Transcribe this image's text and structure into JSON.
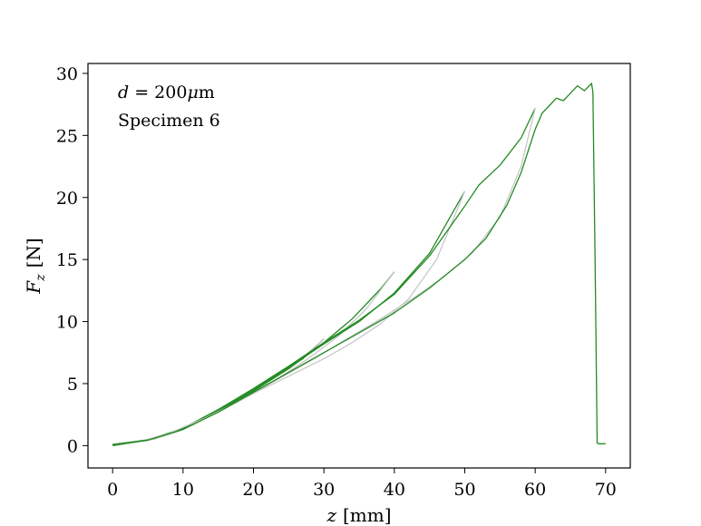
{
  "chart_data": {
    "type": "line",
    "xlabel": {
      "symbol": "z",
      "unit": "[mm]"
    },
    "ylabel": {
      "symbol": "F",
      "subscript": "z",
      "unit": "[N]"
    },
    "xlim": [
      -3.5,
      73.5
    ],
    "ylim": [
      -1.8,
      30.8
    ],
    "xticks": [
      "0",
      "10",
      "20",
      "30",
      "40",
      "50",
      "60",
      "70"
    ],
    "yticks": [
      "0",
      "5",
      "10",
      "15",
      "20",
      "25",
      "30"
    ],
    "annotations": [
      {
        "symbol": "d",
        "text": " = 200",
        "greek": "μ",
        "unit": "m"
      },
      {
        "text": "Specimen 6"
      }
    ],
    "colors": {
      "loading": "#228b22",
      "unloading": "#c8c8c8"
    },
    "series": [
      {
        "values": [
          [
            0,
            0.1
          ],
          [
            3,
            0.25
          ],
          [
            6,
            0.55
          ],
          [
            9,
            1.1
          ],
          [
            12,
            1.9
          ],
          [
            15,
            2.9
          ],
          [
            18,
            3.9
          ],
          [
            21,
            4.9
          ],
          [
            24,
            5.9
          ],
          [
            27,
            7.0
          ],
          [
            30,
            8.6
          ]
        ]
      },
      {
        "values": [
          [
            30,
            8.6
          ],
          [
            26,
            6.6
          ],
          [
            22,
            5.2
          ],
          [
            18,
            3.9
          ],
          [
            14,
            2.6
          ],
          [
            10,
            1.4
          ],
          [
            6,
            0.6
          ],
          [
            3,
            0.3
          ],
          [
            0,
            0.1
          ]
        ]
      },
      {
        "values": [
          [
            0,
            0.1
          ],
          [
            5,
            0.45
          ],
          [
            10,
            1.4
          ],
          [
            15,
            2.9
          ],
          [
            20,
            4.6
          ],
          [
            25,
            6.4
          ],
          [
            30,
            8.3
          ],
          [
            34,
            10.2
          ],
          [
            38,
            12.6
          ],
          [
            40,
            14.0
          ]
        ]
      },
      {
        "values": [
          [
            40,
            14.0
          ],
          [
            36,
            11.0
          ],
          [
            32,
            8.8
          ],
          [
            28,
            7.1
          ],
          [
            24,
            5.6
          ],
          [
            20,
            4.2
          ],
          [
            15,
            2.7
          ],
          [
            10,
            1.3
          ],
          [
            5,
            0.4
          ],
          [
            0,
            0.05
          ]
        ]
      },
      {
        "values": [
          [
            0,
            0.05
          ],
          [
            5,
            0.45
          ],
          [
            10,
            1.4
          ],
          [
            15,
            2.9
          ],
          [
            20,
            4.5
          ],
          [
            25,
            6.3
          ],
          [
            30,
            8.2
          ],
          [
            35,
            10.0
          ],
          [
            40,
            12.3
          ],
          [
            45,
            15.5
          ],
          [
            50,
            20.5
          ]
        ]
      },
      {
        "values": [
          [
            50,
            20.5
          ],
          [
            46,
            15.0
          ],
          [
            42,
            11.8
          ],
          [
            38,
            9.8
          ],
          [
            34,
            8.3
          ],
          [
            30,
            7.0
          ],
          [
            25,
            5.6
          ],
          [
            20,
            4.2
          ],
          [
            15,
            2.7
          ],
          [
            10,
            1.3
          ],
          [
            5,
            0.4
          ],
          [
            0,
            0.0
          ]
        ]
      },
      {
        "values": [
          [
            0,
            0.0
          ],
          [
            5,
            0.45
          ],
          [
            10,
            1.4
          ],
          [
            15,
            2.8
          ],
          [
            20,
            4.4
          ],
          [
            25,
            6.2
          ],
          [
            30,
            8.3
          ],
          [
            35,
            10.1
          ],
          [
            40,
            12.2
          ],
          [
            45,
            15.3
          ],
          [
            50,
            19.3
          ],
          [
            52,
            21.0
          ],
          [
            55,
            22.6
          ],
          [
            58,
            24.8
          ],
          [
            60,
            27.2
          ]
        ]
      },
      {
        "values": [
          [
            60,
            27.2
          ],
          [
            58,
            22.5
          ],
          [
            55,
            18.4
          ],
          [
            51,
            15.5
          ],
          [
            47,
            13.6
          ],
          [
            43,
            12.0
          ],
          [
            38,
            10.2
          ],
          [
            33,
            8.5
          ],
          [
            28,
            6.8
          ],
          [
            23,
            5.2
          ],
          [
            18,
            3.6
          ],
          [
            13,
            2.2
          ],
          [
            8,
            1.0
          ],
          [
            4,
            0.35
          ],
          [
            0,
            0.05
          ]
        ]
      },
      {
        "values": [
          [
            0,
            0.05
          ],
          [
            5,
            0.45
          ],
          [
            10,
            1.3
          ],
          [
            15,
            2.7
          ],
          [
            20,
            4.3
          ],
          [
            25,
            5.9
          ],
          [
            30,
            7.5
          ],
          [
            35,
            9.1
          ],
          [
            40,
            10.7
          ],
          [
            45,
            12.7
          ],
          [
            50,
            15.0
          ],
          [
            53,
            16.7
          ],
          [
            56,
            19.4
          ],
          [
            58,
            22.0
          ],
          [
            60,
            25.5
          ],
          [
            61,
            26.8
          ],
          [
            62,
            27.4
          ],
          [
            63,
            28.0
          ],
          [
            64,
            27.8
          ],
          [
            65,
            28.4
          ],
          [
            66,
            29.0
          ],
          [
            67,
            28.6
          ],
          [
            68,
            29.2
          ],
          [
            68.2,
            28.5
          ],
          [
            68.5,
            15
          ],
          [
            68.8,
            0.2
          ],
          [
            69,
            0.15
          ],
          [
            70,
            0.15
          ]
        ]
      }
    ]
  }
}
